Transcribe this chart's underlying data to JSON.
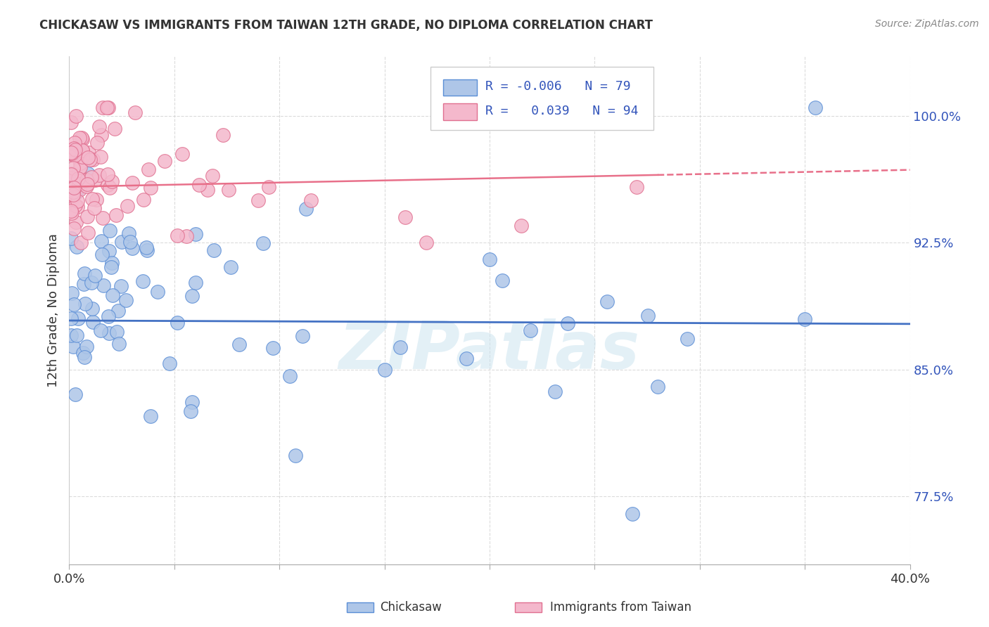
{
  "title": "CHICKASAW VS IMMIGRANTS FROM TAIWAN 12TH GRADE, NO DIPLOMA CORRELATION CHART",
  "source": "Source: ZipAtlas.com",
  "ylabel": "12th Grade, No Diploma",
  "yticks_labels": [
    "100.0%",
    "92.5%",
    "85.0%",
    "77.5%"
  ],
  "ytick_vals": [
    1.0,
    0.925,
    0.85,
    0.775
  ],
  "xmin": 0.0,
  "xmax": 0.4,
  "ymin": 0.735,
  "ymax": 1.035,
  "color_blue": "#aec6e8",
  "color_pink": "#f4b8cc",
  "edge_blue": "#5b8ed6",
  "edge_pink": "#e07090",
  "line_blue_color": "#4472c4",
  "line_pink_color": "#e8708a",
  "watermark_color": "#cce4f0",
  "legend_text_color": "#3355bb",
  "ytick_color": "#3355bb",
  "title_color": "#333333",
  "grid_color": "#cccccc"
}
